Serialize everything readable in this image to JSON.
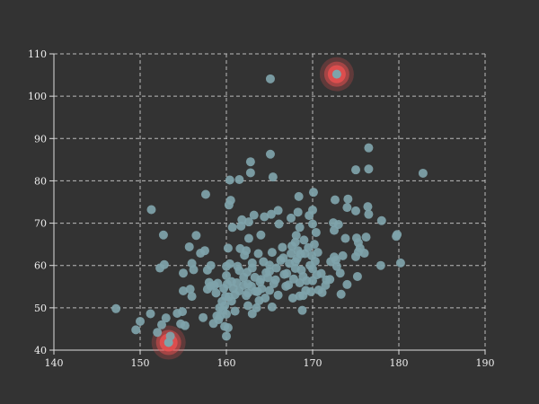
{
  "chart_data": {
    "type": "scatter",
    "title": "",
    "xlabel": "",
    "ylabel": "",
    "xlim": [
      140,
      190
    ],
    "ylim": [
      40,
      110
    ],
    "x_ticks": [
      "140",
      "150",
      "160",
      "170",
      "180",
      "190"
    ],
    "y_ticks": [
      "40",
      "50",
      "60",
      "70",
      "80",
      "90",
      "100",
      "110"
    ],
    "grid": true,
    "legend": "none",
    "colors": {
      "background": "#333333",
      "point": "#7fa3aa",
      "highlight_halo": "#e85050",
      "axis": "#dddddd",
      "grid": "#bbbbbb",
      "text": "#eeeeee"
    },
    "series": [
      {
        "points": [
          [
            147.2,
            49.8
          ],
          [
            149.5,
            44.8
          ],
          [
            150.0,
            46.8
          ],
          [
            151.2,
            48.6
          ],
          [
            151.3,
            73.2
          ],
          [
            152.0,
            44.2
          ],
          [
            152.3,
            59.4
          ],
          [
            152.5,
            46.0
          ],
          [
            152.7,
            67.2
          ],
          [
            152.8,
            60.2
          ],
          [
            153.0,
            47.6
          ],
          [
            153.5,
            43.3
          ],
          [
            154.3,
            48.7
          ],
          [
            154.7,
            46.2
          ],
          [
            154.9,
            49.1
          ],
          [
            155.0,
            54.0
          ],
          [
            155.0,
            58.2
          ],
          [
            155.2,
            45.8
          ],
          [
            155.7,
            64.4
          ],
          [
            155.8,
            54.4
          ],
          [
            156.0,
            52.7
          ],
          [
            156.0,
            60.5
          ],
          [
            156.2,
            59.0
          ],
          [
            156.5,
            67.1
          ],
          [
            157.0,
            62.9
          ],
          [
            157.3,
            47.7
          ],
          [
            157.5,
            63.5
          ],
          [
            157.6,
            76.8
          ],
          [
            157.8,
            54.4
          ],
          [
            157.8,
            58.9
          ],
          [
            158.0,
            56.0
          ],
          [
            158.2,
            60.0
          ],
          [
            158.2,
            55.1
          ],
          [
            158.5,
            46.3
          ],
          [
            158.6,
            55.3
          ],
          [
            158.8,
            53.5
          ],
          [
            159.0,
            55.8
          ],
          [
            159.1,
            47.2
          ],
          [
            159.2,
            50.0
          ],
          [
            159.3,
            48.1
          ],
          [
            159.5,
            51.5
          ],
          [
            159.6,
            49.4
          ],
          [
            159.7,
            54.6
          ],
          [
            159.8,
            45.6
          ],
          [
            159.9,
            52.7
          ],
          [
            160.0,
            57.6
          ],
          [
            160.0,
            59.8
          ],
          [
            160.0,
            48.5
          ],
          [
            160.0,
            43.3
          ],
          [
            160.1,
            55.6
          ],
          [
            160.2,
            45.3
          ],
          [
            160.2,
            64.1
          ],
          [
            160.3,
            52.6
          ],
          [
            160.3,
            74.3
          ],
          [
            160.4,
            80.2
          ],
          [
            160.4,
            60.4
          ],
          [
            160.5,
            75.4
          ],
          [
            160.6,
            56.2
          ],
          [
            160.7,
            69.0
          ],
          [
            160.8,
            54.6
          ],
          [
            161.0,
            49.2
          ],
          [
            161.0,
            53.1
          ],
          [
            161.3,
            59.8
          ],
          [
            161.5,
            80.3
          ],
          [
            161.5,
            54.0
          ],
          [
            161.5,
            58.8
          ],
          [
            161.6,
            64.0
          ],
          [
            161.7,
            69.3
          ],
          [
            161.8,
            70.8
          ],
          [
            162.0,
            57.2
          ],
          [
            162.0,
            55.3
          ],
          [
            162.1,
            62.4
          ],
          [
            162.3,
            52.9
          ],
          [
            162.3,
            63.5
          ],
          [
            162.5,
            53.5
          ],
          [
            162.5,
            50.5
          ],
          [
            162.5,
            55.6
          ],
          [
            162.6,
            70.3
          ],
          [
            162.6,
            66.4
          ],
          [
            162.8,
            84.5
          ],
          [
            162.8,
            81.9
          ],
          [
            162.9,
            55.1
          ],
          [
            163.0,
            48.6
          ],
          [
            163.0,
            59.4
          ],
          [
            163.0,
            60.6
          ],
          [
            163.2,
            71.9
          ],
          [
            163.3,
            57.2
          ],
          [
            163.5,
            50.0
          ],
          [
            163.6,
            53.8
          ],
          [
            163.7,
            62.8
          ],
          [
            163.8,
            51.7
          ],
          [
            164.0,
            56.7
          ],
          [
            164.0,
            67.2
          ],
          [
            164.1,
            54.5
          ],
          [
            164.3,
            60.9
          ],
          [
            164.4,
            71.5
          ],
          [
            164.5,
            52.3
          ],
          [
            164.8,
            57.1
          ],
          [
            165.0,
            54.1
          ],
          [
            165.0,
            58.6
          ],
          [
            165.0,
            60.1
          ],
          [
            165.1,
            86.3
          ],
          [
            165.1,
            104.1
          ],
          [
            165.2,
            72.1
          ],
          [
            165.3,
            50.2
          ],
          [
            165.3,
            63.1
          ],
          [
            165.4,
            80.9
          ],
          [
            165.5,
            55.7
          ],
          [
            165.7,
            56.6
          ],
          [
            165.8,
            59.4
          ],
          [
            166.0,
            73.0
          ],
          [
            166.0,
            53.0
          ],
          [
            166.1,
            69.8
          ],
          [
            166.3,
            61.2
          ],
          [
            166.5,
            64.3
          ],
          [
            166.7,
            57.9
          ],
          [
            167.0,
            58.1
          ],
          [
            167.2,
            55.4
          ],
          [
            167.3,
            60.5
          ],
          [
            167.5,
            62.8
          ],
          [
            167.5,
            71.2
          ],
          [
            167.6,
            64.6
          ],
          [
            167.7,
            52.3
          ],
          [
            167.8,
            56.8
          ],
          [
            168.0,
            65.5
          ],
          [
            168.0,
            59.3
          ],
          [
            168.0,
            60.9
          ],
          [
            168.1,
            67.1
          ],
          [
            168.2,
            61.6
          ],
          [
            168.3,
            63.5
          ],
          [
            168.3,
            72.6
          ],
          [
            168.4,
            76.3
          ],
          [
            168.5,
            52.8
          ],
          [
            168.5,
            55.9
          ],
          [
            168.5,
            69.0
          ],
          [
            168.6,
            62.7
          ],
          [
            168.7,
            58.9
          ],
          [
            168.8,
            49.4
          ],
          [
            168.9,
            57.4
          ],
          [
            169.0,
            66.0
          ],
          [
            169.1,
            62.8
          ],
          [
            169.2,
            54.1
          ],
          [
            169.3,
            56.4
          ],
          [
            169.5,
            64.2
          ],
          [
            169.6,
            71.8
          ],
          [
            169.7,
            60.0
          ],
          [
            169.8,
            53.8
          ],
          [
            169.9,
            62.3
          ],
          [
            170.0,
            56.4
          ],
          [
            170.0,
            59.2
          ],
          [
            170.0,
            69.8
          ],
          [
            170.0,
            73.1
          ],
          [
            170.1,
            77.3
          ],
          [
            170.2,
            65.0
          ],
          [
            170.3,
            61.0
          ],
          [
            170.4,
            67.8
          ],
          [
            170.5,
            57.8
          ],
          [
            170.6,
            63.1
          ],
          [
            170.7,
            54.2
          ],
          [
            171.0,
            58.1
          ],
          [
            171.1,
            53.6
          ],
          [
            171.5,
            55.3
          ],
          [
            172.0,
            56.7
          ],
          [
            172.1,
            60.9
          ],
          [
            172.4,
            70.1
          ],
          [
            172.5,
            68.3
          ],
          [
            172.5,
            62.0
          ],
          [
            172.6,
            75.5
          ],
          [
            172.7,
            61.3
          ],
          [
            172.8,
            59.8
          ],
          [
            173.0,
            69.7
          ],
          [
            173.2,
            58.2
          ],
          [
            173.3,
            53.2
          ],
          [
            173.5,
            62.3
          ],
          [
            173.8,
            66.4
          ],
          [
            174.0,
            55.5
          ],
          [
            174.0,
            73.7
          ],
          [
            174.1,
            75.7
          ],
          [
            175.0,
            62.1
          ],
          [
            175.0,
            82.6
          ],
          [
            175.0,
            72.9
          ],
          [
            175.1,
            66.5
          ],
          [
            175.2,
            57.4
          ],
          [
            175.3,
            65.4
          ],
          [
            175.3,
            63.2
          ],
          [
            175.5,
            64.1
          ],
          [
            176.0,
            62.9
          ],
          [
            176.2,
            66.7
          ],
          [
            176.4,
            73.9
          ],
          [
            176.5,
            87.8
          ],
          [
            176.5,
            82.8
          ],
          [
            176.5,
            72.1
          ],
          [
            177.9,
            60.0
          ],
          [
            178.0,
            70.6
          ],
          [
            179.7,
            66.9
          ],
          [
            179.8,
            67.3
          ],
          [
            180.2,
            60.6
          ],
          [
            182.8,
            81.8
          ],
          [
            166.6,
            61.8
          ],
          [
            163.4,
            53.9
          ],
          [
            161.2,
            55.9
          ],
          [
            159.8,
            50.5
          ],
          [
            162.4,
            58.4
          ],
          [
            164.6,
            58.3
          ],
          [
            166.9,
            55.1
          ],
          [
            168.9,
            52.9
          ],
          [
            171.6,
            56.6
          ],
          [
            160.6,
            51.6
          ],
          [
            158.9,
            48.1
          ],
          [
            163.9,
            56.1
          ]
        ]
      }
    ],
    "highlights": [
      {
        "x": 153.3,
        "y": 41.8
      },
      {
        "x": 172.8,
        "y": 105.2
      }
    ]
  }
}
